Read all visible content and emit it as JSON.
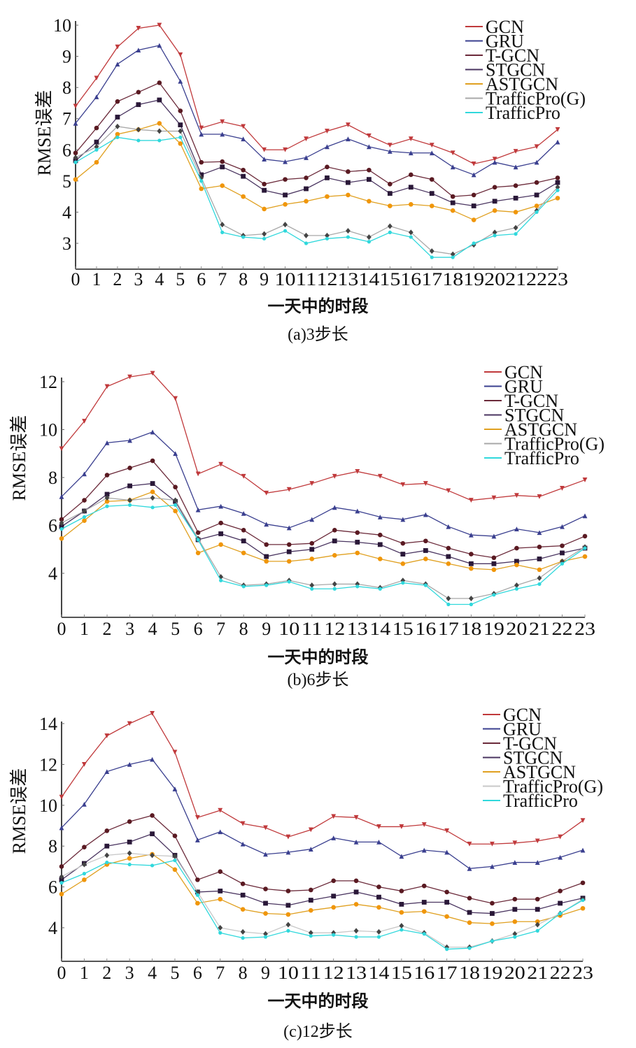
{
  "chart_data": [
    {
      "type": "line",
      "title": "(a)3步长",
      "caption": "(a)3步长",
      "xlabel": "一天中的时段",
      "ylabel": "RMSE误差",
      "x": [
        0,
        1,
        2,
        3,
        4,
        5,
        6,
        7,
        8,
        9,
        10,
        11,
        12,
        13,
        14,
        15,
        16,
        17,
        18,
        19,
        20,
        21,
        22,
        23
      ],
      "xticks": [
        "0",
        "1",
        "2",
        "3",
        "4",
        "5",
        "6",
        "7",
        "8",
        "9",
        "10",
        "11",
        "12",
        "13",
        "14",
        "15",
        "16",
        "17",
        "18",
        "19",
        "20",
        "21",
        "22",
        "23"
      ],
      "yticks": [
        3,
        4,
        5,
        6,
        7,
        8,
        9,
        10
      ],
      "ylim": [
        2.15,
        10.0
      ],
      "legend_position": "top-right",
      "grid": false,
      "series": [
        {
          "name": "GCN",
          "color": "#c0393b",
          "marker": "triangle-down",
          "values": [
            7.4,
            8.3,
            9.3,
            9.9,
            10.0,
            9.05,
            6.7,
            6.9,
            6.75,
            6.0,
            6.0,
            6.35,
            6.6,
            6.8,
            6.45,
            6.15,
            6.35,
            6.15,
            5.9,
            5.55,
            5.7,
            5.95,
            6.1,
            6.65
          ]
        },
        {
          "name": "GRU",
          "color": "#3a3f8f",
          "marker": "triangle-up",
          "values": [
            6.85,
            7.7,
            8.75,
            9.2,
            9.35,
            8.2,
            6.5,
            6.5,
            6.35,
            5.7,
            5.62,
            5.75,
            6.1,
            6.35,
            6.1,
            5.95,
            5.9,
            5.9,
            5.45,
            5.2,
            5.6,
            5.45,
            5.6,
            6.25
          ]
        },
        {
          "name": "T-GCN",
          "color": "#6b2a3a",
          "marker": "circle",
          "values": [
            5.9,
            6.7,
            7.55,
            7.85,
            8.15,
            7.25,
            5.6,
            5.62,
            5.35,
            4.9,
            5.05,
            5.1,
            5.45,
            5.3,
            5.35,
            4.9,
            5.2,
            5.05,
            4.5,
            4.55,
            4.8,
            4.85,
            4.95,
            5.1
          ]
        },
        {
          "name": "STGCN",
          "color": "#4a3560",
          "marker": "square",
          "values": [
            5.65,
            6.25,
            7.05,
            7.45,
            7.6,
            6.8,
            5.2,
            5.45,
            5.15,
            4.7,
            4.55,
            4.75,
            5.1,
            4.95,
            5.05,
            4.6,
            4.8,
            4.6,
            4.3,
            4.2,
            4.35,
            4.45,
            4.55,
            4.95
          ]
        },
        {
          "name": "ASTGCN",
          "color": "#e0a020",
          "marker": "circle",
          "values": [
            5.05,
            5.6,
            6.5,
            6.65,
            6.85,
            6.2,
            4.75,
            4.85,
            4.5,
            4.1,
            4.25,
            4.35,
            4.5,
            4.55,
            4.35,
            4.2,
            4.25,
            4.2,
            4.05,
            3.75,
            4.05,
            4.0,
            4.2,
            4.45
          ]
        },
        {
          "name": "TrafficPro(G)",
          "color": "#a8a8a8",
          "marker": "diamond",
          "values": [
            5.75,
            6.1,
            6.75,
            6.65,
            6.6,
            6.6,
            5.1,
            3.6,
            3.25,
            3.3,
            3.6,
            3.25,
            3.25,
            3.4,
            3.2,
            3.55,
            3.35,
            2.75,
            2.65,
            2.95,
            3.35,
            3.5,
            4.05,
            4.8
          ]
        },
        {
          "name": "TrafficPro",
          "color": "#30d8dc",
          "marker": "star",
          "values": [
            5.6,
            6.0,
            6.4,
            6.3,
            6.3,
            6.4,
            5.0,
            3.35,
            3.2,
            3.15,
            3.4,
            3.0,
            3.15,
            3.2,
            3.05,
            3.35,
            3.2,
            2.55,
            2.55,
            3.0,
            3.25,
            3.3,
            4.0,
            4.7
          ]
        }
      ]
    },
    {
      "type": "line",
      "title": "(b)6步长",
      "caption": "(b)6步长",
      "xlabel": "一天中的时段",
      "ylabel": "RMSE误差",
      "x": [
        0,
        1,
        2,
        3,
        4,
        5,
        6,
        7,
        8,
        9,
        10,
        11,
        12,
        13,
        14,
        15,
        16,
        17,
        18,
        19,
        20,
        21,
        22,
        23
      ],
      "xticks": [
        "0",
        "1",
        "2",
        "3",
        "4",
        "5",
        "6",
        "7",
        "8",
        "9",
        "10",
        "11",
        "12",
        "13",
        "14",
        "15",
        "16",
        "17",
        "18",
        "19",
        "20",
        "21",
        "22",
        "23"
      ],
      "yticks": [
        4,
        6,
        8,
        10,
        12
      ],
      "ylim": [
        2.2,
        12.0
      ],
      "legend_position": "top-right",
      "grid": false,
      "series": [
        {
          "name": "GCN",
          "color": "#c0393b",
          "marker": "triangle-down",
          "values": [
            9.2,
            10.35,
            11.8,
            12.2,
            12.35,
            11.3,
            8.15,
            8.55,
            8.05,
            7.35,
            7.5,
            7.75,
            8.05,
            8.25,
            8.05,
            7.7,
            7.75,
            7.45,
            7.05,
            7.15,
            7.25,
            7.2,
            7.55,
            7.9
          ]
        },
        {
          "name": "GRU",
          "color": "#3a3f8f",
          "marker": "triangle-up",
          "values": [
            7.2,
            8.15,
            9.45,
            9.55,
            9.9,
            9.0,
            6.65,
            6.8,
            6.5,
            6.05,
            5.9,
            6.25,
            6.75,
            6.6,
            6.35,
            6.25,
            6.45,
            5.95,
            5.6,
            5.55,
            5.85,
            5.7,
            5.95,
            6.4
          ]
        },
        {
          "name": "T-GCN",
          "color": "#6b2a3a",
          "marker": "circle",
          "values": [
            6.25,
            7.05,
            8.1,
            8.4,
            8.7,
            7.6,
            5.7,
            6.1,
            5.8,
            5.2,
            5.2,
            5.25,
            5.8,
            5.7,
            5.6,
            5.25,
            5.35,
            5.05,
            4.8,
            4.65,
            5.05,
            5.1,
            5.15,
            5.55
          ]
        },
        {
          "name": "STGCN",
          "color": "#4a3560",
          "marker": "square",
          "values": [
            5.95,
            6.6,
            7.3,
            7.65,
            7.75,
            7.0,
            5.4,
            5.65,
            5.35,
            4.7,
            4.9,
            5.0,
            5.35,
            5.3,
            5.2,
            4.8,
            4.95,
            4.7,
            4.4,
            4.4,
            4.5,
            4.6,
            4.85,
            5.05
          ]
        },
        {
          "name": "ASTGCN",
          "color": "#e0a020",
          "marker": "circle",
          "values": [
            5.45,
            6.2,
            7.0,
            7.05,
            7.4,
            6.6,
            4.85,
            5.2,
            4.85,
            4.5,
            4.5,
            4.6,
            4.75,
            4.85,
            4.6,
            4.4,
            4.6,
            4.4,
            4.2,
            4.15,
            4.35,
            4.15,
            4.5,
            4.7
          ]
        },
        {
          "name": "TrafficPro(G)",
          "color": "#a8a8a8",
          "marker": "diamond",
          "values": [
            6.1,
            6.6,
            7.15,
            7.05,
            7.15,
            7.05,
            5.45,
            3.85,
            3.5,
            3.55,
            3.7,
            3.5,
            3.55,
            3.55,
            3.4,
            3.7,
            3.55,
            2.95,
            2.95,
            3.15,
            3.5,
            3.8,
            4.5,
            5.1
          ]
        },
        {
          "name": "TrafficPro",
          "color": "#30d8dc",
          "marker": "star",
          "values": [
            5.85,
            6.35,
            6.8,
            6.85,
            6.75,
            6.85,
            5.4,
            3.7,
            3.45,
            3.5,
            3.65,
            3.35,
            3.35,
            3.45,
            3.35,
            3.6,
            3.5,
            2.7,
            2.7,
            3.1,
            3.35,
            3.55,
            4.4,
            5.05
          ]
        }
      ]
    },
    {
      "type": "line",
      "title": "(c)12步长",
      "caption": "(c)12步长",
      "xlabel": "一天中的时段",
      "ylabel": "RMSE误差",
      "x": [
        0,
        1,
        2,
        3,
        4,
        5,
        6,
        7,
        8,
        9,
        10,
        11,
        12,
        13,
        14,
        15,
        16,
        17,
        18,
        19,
        20,
        21,
        22,
        23
      ],
      "xticks": [
        "0",
        "1",
        "2",
        "3",
        "4",
        "5",
        "6",
        "7",
        "8",
        "9",
        "10",
        "11",
        "12",
        "13",
        "14",
        "15",
        "16",
        "17",
        "18",
        "19",
        "20",
        "21",
        "22",
        "23"
      ],
      "yticks": [
        4,
        6,
        8,
        10,
        12,
        14
      ],
      "ylim": [
        2.35,
        14.0
      ],
      "legend_position": "top-right",
      "grid": false,
      "series": [
        {
          "name": "GCN",
          "color": "#c0393b",
          "marker": "triangle-down",
          "values": [
            10.4,
            12.0,
            13.4,
            14.0,
            14.5,
            12.6,
            9.4,
            9.75,
            9.1,
            8.9,
            8.45,
            8.8,
            9.45,
            9.4,
            8.95,
            8.95,
            9.05,
            8.75,
            8.1,
            8.1,
            8.15,
            8.25,
            8.45,
            9.25
          ]
        },
        {
          "name": "GRU",
          "color": "#3a3f8f",
          "marker": "triangle-up",
          "values": [
            8.9,
            10.05,
            11.65,
            12.0,
            12.25,
            10.8,
            8.3,
            8.7,
            8.1,
            7.6,
            7.7,
            7.85,
            8.4,
            8.2,
            8.2,
            7.5,
            7.8,
            7.7,
            6.9,
            7.0,
            7.2,
            7.2,
            7.45,
            7.8
          ]
        },
        {
          "name": "T-GCN",
          "color": "#6b2a3a",
          "marker": "circle",
          "values": [
            7.0,
            7.95,
            8.75,
            9.2,
            9.5,
            8.5,
            6.35,
            6.75,
            6.15,
            5.9,
            5.8,
            5.85,
            6.3,
            6.3,
            6.0,
            5.8,
            6.05,
            5.75,
            5.45,
            5.2,
            5.4,
            5.4,
            5.8,
            6.2
          ]
        },
        {
          "name": "STGCN",
          "color": "#4a3560",
          "marker": "square",
          "values": [
            6.35,
            7.15,
            8.0,
            8.2,
            8.6,
            7.55,
            5.75,
            5.8,
            5.6,
            5.2,
            5.1,
            5.35,
            5.55,
            5.75,
            5.5,
            5.15,
            5.25,
            5.25,
            4.75,
            4.7,
            4.9,
            4.9,
            5.2,
            5.45
          ]
        },
        {
          "name": "ASTGCN",
          "color": "#e0a020",
          "marker": "circle",
          "values": [
            5.65,
            6.35,
            7.1,
            7.4,
            7.6,
            6.85,
            5.2,
            5.4,
            4.9,
            4.7,
            4.65,
            4.85,
            5.0,
            5.15,
            5.0,
            4.75,
            4.8,
            4.55,
            4.25,
            4.2,
            4.3,
            4.3,
            4.6,
            4.95
          ]
        },
        {
          "name": "TrafficPro(G)",
          "color": "#c8c8c8",
          "marker": "diamond",
          "values": [
            6.5,
            7.1,
            7.55,
            7.65,
            7.55,
            7.5,
            5.75,
            4.0,
            3.8,
            3.7,
            4.15,
            3.75,
            3.75,
            3.85,
            3.8,
            4.1,
            3.75,
            3.05,
            3.05,
            3.35,
            3.7,
            4.15,
            4.7,
            5.4
          ]
        },
        {
          "name": "TrafficPro",
          "color": "#30d8dc",
          "marker": "star",
          "values": [
            6.2,
            6.65,
            7.2,
            7.1,
            7.05,
            7.3,
            5.6,
            3.75,
            3.5,
            3.55,
            3.85,
            3.6,
            3.65,
            3.55,
            3.55,
            3.9,
            3.7,
            2.95,
            3.0,
            3.35,
            3.55,
            3.85,
            4.7,
            5.35
          ]
        }
      ]
    }
  ]
}
